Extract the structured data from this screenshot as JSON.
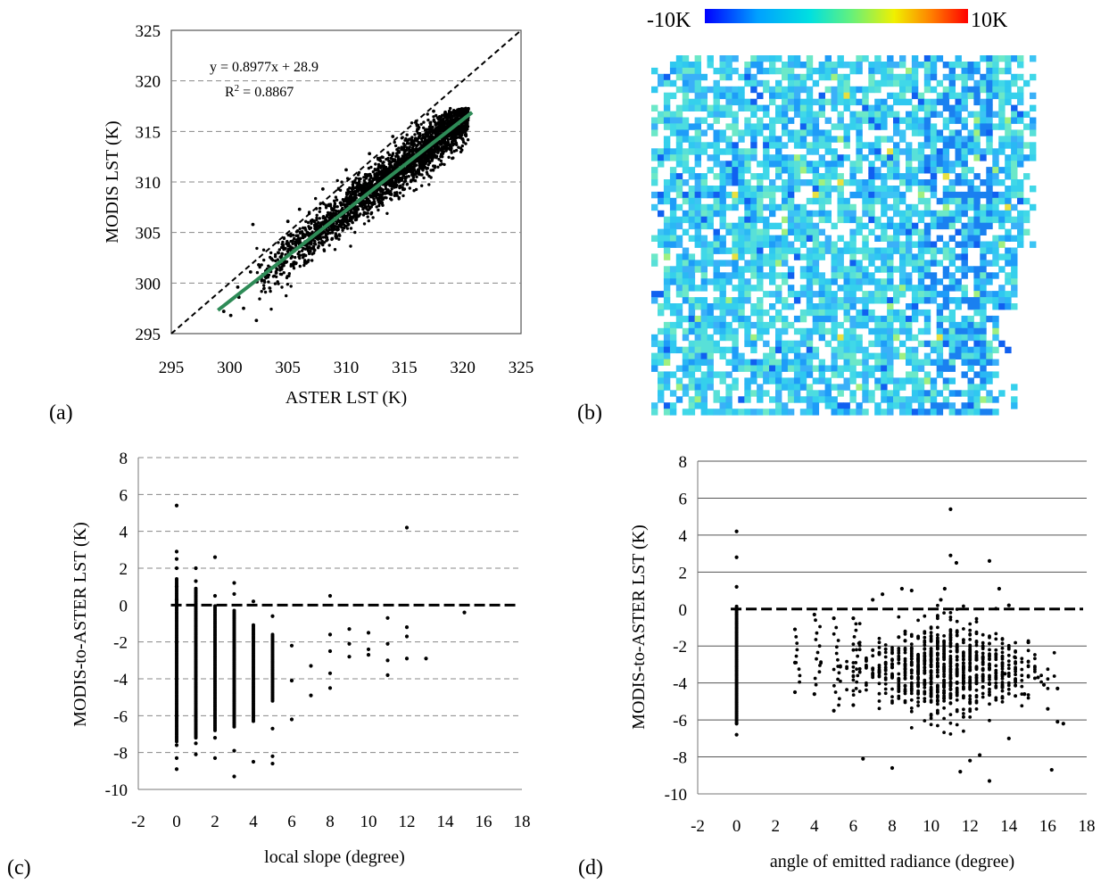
{
  "panels": {
    "a": {
      "label": "(a)"
    },
    "b": {
      "label": "(b)"
    },
    "c": {
      "label": "(c)"
    },
    "d": {
      "label": "(d)"
    }
  },
  "colorbar": {
    "min_label": "-10K",
    "max_label": "10K",
    "colors": [
      "#0000ff",
      "#00a0ff",
      "#00e0e0",
      "#60f080",
      "#f0f000",
      "#ff8000",
      "#ff0000"
    ]
  },
  "chart_data": [
    {
      "id": "a",
      "type": "scatter",
      "title": "",
      "xlabel": "ASTER LST (K)",
      "ylabel": "MODIS LST (K)",
      "xlim": [
        295,
        325
      ],
      "ylim": [
        295,
        325
      ],
      "xticks": [
        "295",
        "300",
        "305",
        "310",
        "315",
        "320",
        "325"
      ],
      "yticks": [
        "295",
        "300",
        "305",
        "310",
        "315",
        "320",
        "325"
      ],
      "grid": "horizontal dashed",
      "fit": {
        "slope": 0.8977,
        "intercept": 28.9,
        "x_range": [
          299,
          320.8
        ],
        "color": "#2e8b57"
      },
      "equation_text": "y = 0.8977x + 28.9",
      "r2_text": "R",
      "r2_sup": "2",
      "r2_value_text": " = 0.8867",
      "reference_line": "1:1 dashed",
      "series": [
        {
          "name": "pixels",
          "points": [
            [
              299.5,
              297.2
            ],
            [
              300.1,
              296.8
            ],
            [
              301.2,
              297.5
            ],
            [
              302.3,
              296.3
            ],
            [
              300.8,
              298.6
            ],
            [
              301.8,
              301.1
            ],
            [
              302.5,
              301.8
            ],
            [
              303.1,
              301.2
            ],
            [
              303.6,
              302.4
            ],
            [
              304.0,
              301.0
            ],
            [
              304.5,
              302.9
            ],
            [
              305.2,
              303.4
            ],
            [
              305.8,
              304.0
            ],
            [
              306.3,
              304.5
            ],
            [
              306.7,
              302.1
            ],
            [
              307.2,
              303.6
            ],
            [
              307.8,
              305.6
            ],
            [
              308.3,
              306.0
            ],
            [
              308.8,
              304.4
            ],
            [
              309.2,
              306.5
            ],
            [
              309.7,
              307.1
            ],
            [
              310.2,
              305.8
            ],
            [
              310.8,
              308.0
            ],
            [
              311.3,
              308.6
            ],
            [
              311.7,
              306.9
            ],
            [
              312.2,
              309.2
            ],
            [
              312.7,
              310.0
            ],
            [
              313.1,
              308.3
            ],
            [
              313.6,
              310.6
            ],
            [
              314.1,
              311.3
            ],
            [
              314.6,
              309.5
            ],
            [
              315.0,
              312.0
            ],
            [
              315.5,
              312.6
            ],
            [
              316.0,
              311.0
            ],
            [
              316.5,
              313.2
            ],
            [
              317.0,
              314.0
            ],
            [
              317.4,
              312.3
            ],
            [
              317.9,
              314.6
            ],
            [
              318.4,
              315.1
            ],
            [
              318.9,
              313.6
            ],
            [
              319.4,
              316.0
            ],
            [
              319.8,
              316.6
            ],
            [
              320.3,
              315.2
            ],
            [
              305.0,
              306.1
            ],
            [
              306.0,
              307.3
            ],
            [
              308.0,
              309.3
            ],
            [
              310.0,
              311.2
            ],
            [
              312.0,
              312.8
            ],
            [
              314.0,
              314.5
            ],
            [
              316.0,
              316.0
            ],
            [
              317.5,
              317.0
            ],
            [
              318.5,
              316.9
            ],
            [
              302.0,
              305.8
            ],
            [
              300.7,
              299.6
            ]
          ]
        }
      ]
    },
    {
      "id": "c",
      "type": "scatter",
      "title": "",
      "xlabel": "local slope (degree)",
      "ylabel": "MODIS-to-ASTER LST (K)",
      "xlim": [
        -2,
        18
      ],
      "ylim": [
        -10,
        8
      ],
      "xticks": [
        "-2",
        "0",
        "2",
        "4",
        "6",
        "8",
        "10",
        "12",
        "14",
        "16",
        "18"
      ],
      "yticks": [
        "-10",
        "-8",
        "-6",
        "-4",
        "-2",
        "0",
        "2",
        "4",
        "6",
        "8"
      ],
      "grid": "horizontal dashed",
      "zero_line": "thick dashed",
      "series": [
        {
          "name": "pixels",
          "points": [
            [
              0,
              5.4
            ],
            [
              0,
              2.9
            ],
            [
              0,
              2.5
            ],
            [
              0,
              2.0
            ],
            [
              0,
              1.0
            ],
            [
              0,
              0.3
            ],
            [
              0,
              -7.6
            ],
            [
              0,
              -8.3
            ],
            [
              0,
              -8.9
            ],
            [
              1,
              2.0
            ],
            [
              1,
              1.3
            ],
            [
              1,
              -7.5
            ],
            [
              1,
              -8.1
            ],
            [
              2,
              2.6
            ],
            [
              2,
              0.5
            ],
            [
              2,
              -7.2
            ],
            [
              2,
              -8.3
            ],
            [
              3,
              1.2
            ],
            [
              3,
              0.6
            ],
            [
              3,
              -7.9
            ],
            [
              3,
              -9.3
            ],
            [
              4,
              0.2
            ],
            [
              4,
              -8.5
            ],
            [
              5,
              -0.6
            ],
            [
              5,
              -6.7
            ],
            [
              5,
              -8.2
            ],
            [
              5,
              -8.6
            ],
            [
              6,
              -2.2
            ],
            [
              6,
              -4.1
            ],
            [
              6,
              -6.2
            ],
            [
              7,
              -3.3
            ],
            [
              7,
              -4.9
            ],
            [
              8,
              0.5
            ],
            [
              8,
              -1.6
            ],
            [
              8,
              -2.5
            ],
            [
              8,
              -3.7
            ],
            [
              8,
              -4.5
            ],
            [
              9,
              -1.3
            ],
            [
              9,
              -2.1
            ],
            [
              9,
              -2.8
            ],
            [
              10,
              -1.5
            ],
            [
              10,
              -2.4
            ],
            [
              10,
              -2.7
            ],
            [
              11,
              -0.7
            ],
            [
              11,
              -2.1
            ],
            [
              11,
              -3.0
            ],
            [
              11,
              -3.8
            ],
            [
              12,
              4.2
            ],
            [
              12,
              -1.2
            ],
            [
              12,
              -1.7
            ],
            [
              12,
              -2.9
            ],
            [
              13,
              -2.9
            ],
            [
              15,
              -0.4
            ]
          ]
        }
      ],
      "columns": [
        {
          "x": 0,
          "from": -7.4,
          "to": 1.5
        },
        {
          "x": 1,
          "from": -7.2,
          "to": 0.9
        },
        {
          "x": 2,
          "from": -6.8,
          "to": 0.0
        },
        {
          "x": 3,
          "from": -6.6,
          "to": -0.3
        },
        {
          "x": 4,
          "from": -6.3,
          "to": -1.0
        },
        {
          "x": 5,
          "from": -5.2,
          "to": -1.6
        }
      ]
    },
    {
      "id": "d",
      "type": "scatter",
      "title": "",
      "xlabel": "angle of emitted radiance (degree)",
      "ylabel": "MODIS-to-ASTER LST (K)",
      "xlim": [
        -2,
        18
      ],
      "ylim": [
        -10,
        8
      ],
      "xticks": [
        "-2",
        "0",
        "2",
        "4",
        "6",
        "8",
        "10",
        "12",
        "14",
        "16",
        "18"
      ],
      "yticks": [
        "-10",
        "-8",
        "-6",
        "-4",
        "-2",
        "0",
        "2",
        "4",
        "6",
        "8"
      ],
      "grid": "horizontal solid",
      "zero_line": "thick dashed",
      "series": [
        {
          "name": "pixels",
          "points": [
            [
              0,
              4.2
            ],
            [
              0,
              2.8
            ],
            [
              0,
              1.2
            ],
            [
              0,
              -6.2
            ],
            [
              0,
              -6.8
            ],
            [
              3,
              -1.1
            ],
            [
              3,
              -2.9
            ],
            [
              3,
              -4.5
            ],
            [
              4,
              -0.3
            ],
            [
              4,
              -4.6
            ],
            [
              5,
              -5.5
            ],
            [
              5,
              -0.5
            ],
            [
              6,
              -0.5
            ],
            [
              6,
              -5.2
            ],
            [
              6.5,
              -8.1
            ],
            [
              7,
              0.5
            ],
            [
              7.5,
              0.8
            ],
            [
              8,
              -8.6
            ],
            [
              8.5,
              1.1
            ],
            [
              9,
              1.0
            ],
            [
              10.5,
              0.5
            ],
            [
              10.7,
              1.1
            ],
            [
              11,
              5.4
            ],
            [
              11,
              2.9
            ],
            [
              11.3,
              2.5
            ],
            [
              11.5,
              -8.8
            ],
            [
              12,
              -8.2
            ],
            [
              13,
              2.6
            ],
            [
              13,
              -9.3
            ],
            [
              13.5,
              1.1
            ],
            [
              14,
              0.2
            ],
            [
              14,
              -7.0
            ],
            [
              15,
              -1.8
            ],
            [
              15.8,
              -4.1
            ],
            [
              16,
              -5.4
            ],
            [
              16.2,
              -8.7
            ],
            [
              16.5,
              -6.1
            ],
            [
              16.8,
              -6.2
            ],
            [
              16.5,
              -4.3
            ],
            [
              15.5,
              -3.7
            ],
            [
              14.8,
              -4.6
            ],
            [
              14.3,
              -2.6
            ],
            [
              13.8,
              -3.5
            ],
            [
              12.5,
              -7.9
            ]
          ]
        }
      ],
      "cluster": {
        "x_range": [
          6.2,
          14.8
        ],
        "center_x": 10.8,
        "center_y": -3.3,
        "x_spread": 2.2,
        "y_spread": 1.4,
        "count": 900
      }
    }
  ]
}
